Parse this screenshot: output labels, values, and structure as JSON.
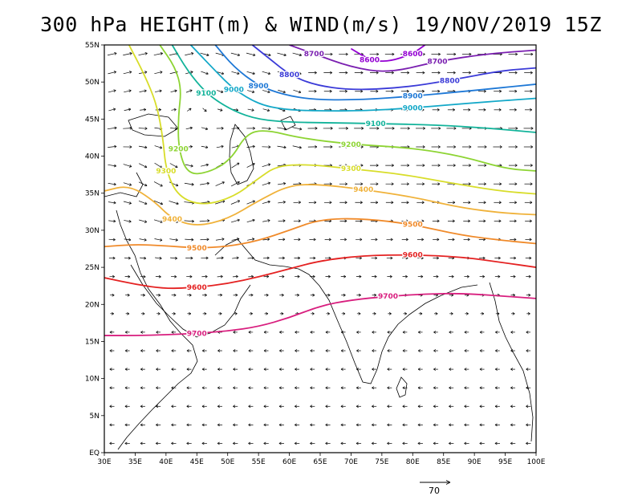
{
  "title": "300 hPa HEIGHT(m) & WIND(m/s) 19/NOV/2019 15Z",
  "axes": {
    "lon_labels": [
      "30E",
      "35E",
      "40E",
      "45E",
      "50E",
      "55E",
      "60E",
      "65E",
      "70E",
      "75E",
      "80E",
      "85E",
      "90E",
      "95E",
      "100E"
    ],
    "lat_labels": [
      "EQ",
      "5N",
      "10N",
      "15N",
      "20N",
      "25N",
      "30N",
      "35N",
      "40N",
      "45N",
      "50N",
      "55N"
    ],
    "lon_range": [
      30,
      100
    ],
    "lat_range": [
      0,
      55
    ]
  },
  "reference_vector": {
    "label": "70",
    "units": "m/s"
  },
  "chart_data": {
    "type": "contour_map",
    "variable": "geopotential height (m) with wind vectors",
    "level": "300 hPa",
    "contours": [
      {
        "value": 8600,
        "label": "8600",
        "color": "#9400d3",
        "points": [
          [
            70,
            54.5
          ],
          [
            73,
            53.0
          ],
          [
            76,
            52.7
          ],
          [
            80,
            53.8
          ],
          [
            82,
            55
          ]
        ]
      },
      {
        "value": 8700,
        "label": "8700",
        "color": "#7a1fb0",
        "points": [
          [
            60,
            55
          ],
          [
            64,
            53.8
          ],
          [
            70,
            52.0
          ],
          [
            76,
            51.2
          ],
          [
            84,
            52.8
          ],
          [
            92,
            53.8
          ],
          [
            100,
            54.3
          ]
        ]
      },
      {
        "value": 8800,
        "label": "8800",
        "color": "#3b3bd8",
        "points": [
          [
            54,
            55
          ],
          [
            57,
            53.0
          ],
          [
            60,
            51.0
          ],
          [
            64,
            49.6
          ],
          [
            70,
            48.9
          ],
          [
            78,
            49.2
          ],
          [
            86,
            50.2
          ],
          [
            94,
            51.5
          ],
          [
            100,
            51.9
          ]
        ]
      },
      {
        "value": 8900,
        "label": "8900",
        "color": "#1e78d6",
        "points": [
          [
            48,
            55
          ],
          [
            51,
            52.0
          ],
          [
            55,
            49.5
          ],
          [
            59,
            48.3
          ],
          [
            64,
            47.6
          ],
          [
            72,
            47.6
          ],
          [
            80,
            48.1
          ],
          [
            88,
            48.7
          ],
          [
            100,
            49.7
          ]
        ]
      },
      {
        "value": 9000,
        "label": "9000",
        "color": "#13a8c8",
        "points": [
          [
            44,
            55
          ],
          [
            48,
            51.5
          ],
          [
            51,
            49.0
          ],
          [
            55,
            47.0
          ],
          [
            59,
            46.3
          ],
          [
            64,
            46.1
          ],
          [
            72,
            46.1
          ],
          [
            80,
            46.5
          ],
          [
            90,
            47.2
          ],
          [
            100,
            47.8
          ]
        ]
      },
      {
        "value": 9100,
        "label": "9100",
        "color": "#12b39a",
        "points": [
          [
            41,
            55
          ],
          [
            43.5,
            51.5
          ],
          [
            46.5,
            48.5
          ],
          [
            50,
            46.5
          ],
          [
            54,
            45.1
          ],
          [
            59,
            44.6
          ],
          [
            66,
            44.5
          ],
          [
            74,
            44.4
          ],
          [
            84,
            44.2
          ],
          [
            92,
            43.8
          ],
          [
            100,
            43.2
          ]
        ]
      },
      {
        "value": 9200,
        "label": "9200",
        "color": "#8dd433",
        "points": [
          [
            39,
            55
          ],
          [
            41.5,
            52.0
          ],
          [
            42.5,
            49.0
          ],
          [
            42,
            45.5
          ],
          [
            42,
            41.0
          ],
          [
            43.5,
            37.5
          ],
          [
            47,
            37.8
          ],
          [
            50.5,
            39.5
          ],
          [
            53,
            43.0
          ],
          [
            56,
            43.6
          ],
          [
            62,
            42.4
          ],
          [
            70,
            41.6
          ],
          [
            80,
            41.1
          ],
          [
            88,
            40.0
          ],
          [
            95,
            38.3
          ],
          [
            100,
            38.0
          ]
        ]
      },
      {
        "value": 9300,
        "label": "9300",
        "color": "#d8dd2a",
        "points": [
          [
            34,
            55
          ],
          [
            36.5,
            51.0
          ],
          [
            38.5,
            47.0
          ],
          [
            39.5,
            42.5
          ],
          [
            40,
            38.0
          ],
          [
            42,
            34.5
          ],
          [
            46,
            33.3
          ],
          [
            51,
            34.5
          ],
          [
            55,
            37.0
          ],
          [
            58,
            38.7
          ],
          [
            63,
            38.9
          ],
          [
            70,
            38.3
          ],
          [
            78,
            37.6
          ],
          [
            86,
            36.4
          ],
          [
            94,
            35.3
          ],
          [
            100,
            34.9
          ]
        ]
      },
      {
        "value": 9400,
        "label": "9400",
        "color": "#f0b23a",
        "points": [
          [
            30,
            35.3
          ],
          [
            34,
            36.1
          ],
          [
            38,
            34.0
          ],
          [
            41,
            31.5
          ],
          [
            45,
            30.5
          ],
          [
            50,
            31.5
          ],
          [
            55,
            34.0
          ],
          [
            60,
            36.1
          ],
          [
            65,
            36.2
          ],
          [
            72,
            35.5
          ],
          [
            80,
            34.5
          ],
          [
            88,
            33.0
          ],
          [
            95,
            32.3
          ],
          [
            100,
            32.1
          ]
        ]
      },
      {
        "value": 9500,
        "label": "9500",
        "color": "#f08a2a",
        "points": [
          [
            30,
            27.8
          ],
          [
            35,
            28.1
          ],
          [
            40,
            27.9
          ],
          [
            45,
            27.6
          ],
          [
            50,
            27.8
          ],
          [
            55,
            28.6
          ],
          [
            60,
            30.0
          ],
          [
            65,
            31.5
          ],
          [
            72,
            31.6
          ],
          [
            80,
            30.8
          ],
          [
            88,
            29.3
          ],
          [
            95,
            28.6
          ],
          [
            100,
            28.2
          ]
        ]
      },
      {
        "value": 9600,
        "label": "9600",
        "color": "#e42222",
        "points": [
          [
            30,
            23.6
          ],
          [
            35,
            22.7
          ],
          [
            40,
            22.1
          ],
          [
            45,
            22.3
          ],
          [
            50,
            22.8
          ],
          [
            55,
            23.7
          ],
          [
            60,
            24.8
          ],
          [
            65,
            25.9
          ],
          [
            72,
            26.6
          ],
          [
            80,
            26.7
          ],
          [
            88,
            26.4
          ],
          [
            95,
            25.6
          ],
          [
            100,
            25.0
          ]
        ]
      },
      {
        "value": 9700,
        "label": "9700",
        "color": "#d81e7e",
        "points": [
          [
            30,
            15.8
          ],
          [
            35,
            15.8
          ],
          [
            40,
            15.9
          ],
          [
            45,
            16.1
          ],
          [
            50,
            16.4
          ],
          [
            55,
            17.0
          ],
          [
            60,
            18.2
          ],
          [
            65,
            19.8
          ],
          [
            70,
            20.6
          ],
          [
            76,
            21.1
          ],
          [
            82,
            21.4
          ],
          [
            88,
            21.5
          ],
          [
            95,
            21.1
          ],
          [
            100,
            20.8
          ]
        ]
      }
    ],
    "wind": {
      "grid_spacing_deg": 2.5,
      "description": "wind vectors at every grid point; westerly jet north of ~25N, weak easterlies in the tropics, cyclonic circulation near 45E 38N"
    }
  }
}
